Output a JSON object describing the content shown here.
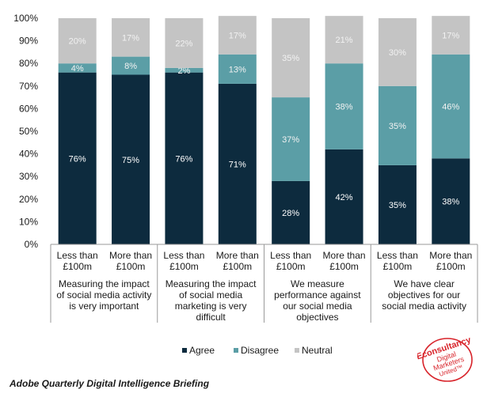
{
  "chart_data": {
    "type": "bar",
    "stacked": true,
    "percent": true,
    "categories": [
      "Less than £100m",
      "More than £100m",
      "Less than £100m",
      "More than £100m",
      "Less than £100m",
      "More than £100m",
      "Less than £100m",
      "More than £100m"
    ],
    "category_lines": [
      [
        "Less than",
        "£100m"
      ],
      [
        "More than",
        "£100m"
      ],
      [
        "Less than",
        "£100m"
      ],
      [
        "More than",
        "£100m"
      ],
      [
        "Less than",
        "£100m"
      ],
      [
        "More than",
        "£100m"
      ],
      [
        "Less than",
        "£100m"
      ],
      [
        "More than",
        "£100m"
      ]
    ],
    "groups": [
      {
        "lines": [
          "Measuring the impact",
          "of social media activity",
          "is very important"
        ]
      },
      {
        "lines": [
          "Measuring the impact",
          "of social media",
          "marketing is very",
          "difficult"
        ]
      },
      {
        "lines": [
          "We measure",
          "performance against",
          "our social media",
          "objectives"
        ]
      },
      {
        "lines": [
          "We have clear",
          "objectives for our",
          "social media activity"
        ]
      }
    ],
    "series": [
      {
        "name": "Agree",
        "color": "#0d2b3e",
        "values": [
          76,
          75,
          76,
          71,
          28,
          42,
          35,
          38
        ],
        "labels": [
          "76%",
          "75%",
          "76%",
          "71%",
          "28%",
          "42%",
          "35%",
          "38%"
        ]
      },
      {
        "name": "Disagree",
        "color": "#5b9ea6",
        "values": [
          4,
          8,
          2,
          13,
          37,
          38,
          35,
          46
        ],
        "labels": [
          "4%",
          "8%",
          "2%",
          "13%",
          "37%",
          "38%",
          "35%",
          "46%"
        ]
      },
      {
        "name": "Neutral",
        "color": "#c4c4c4",
        "values": [
          20,
          17,
          22,
          17,
          35,
          21,
          30,
          17
        ],
        "labels": [
          "20%",
          "17%",
          "22%",
          "17%",
          "35%",
          "21%",
          "30%",
          "17%"
        ]
      }
    ],
    "yticks": [
      "0%",
      "10%",
      "20%",
      "30%",
      "40%",
      "50%",
      "60%",
      "70%",
      "80%",
      "90%",
      "100%"
    ],
    "ylim": [
      0,
      100
    ],
    "legend_position": "bottom"
  },
  "footer": "Adobe Quarterly Digital Intelligence Briefing",
  "logo": {
    "lines": [
      "Econsultancy",
      "Digital",
      "Marketers",
      "United™"
    ],
    "color": "#d8232a"
  }
}
